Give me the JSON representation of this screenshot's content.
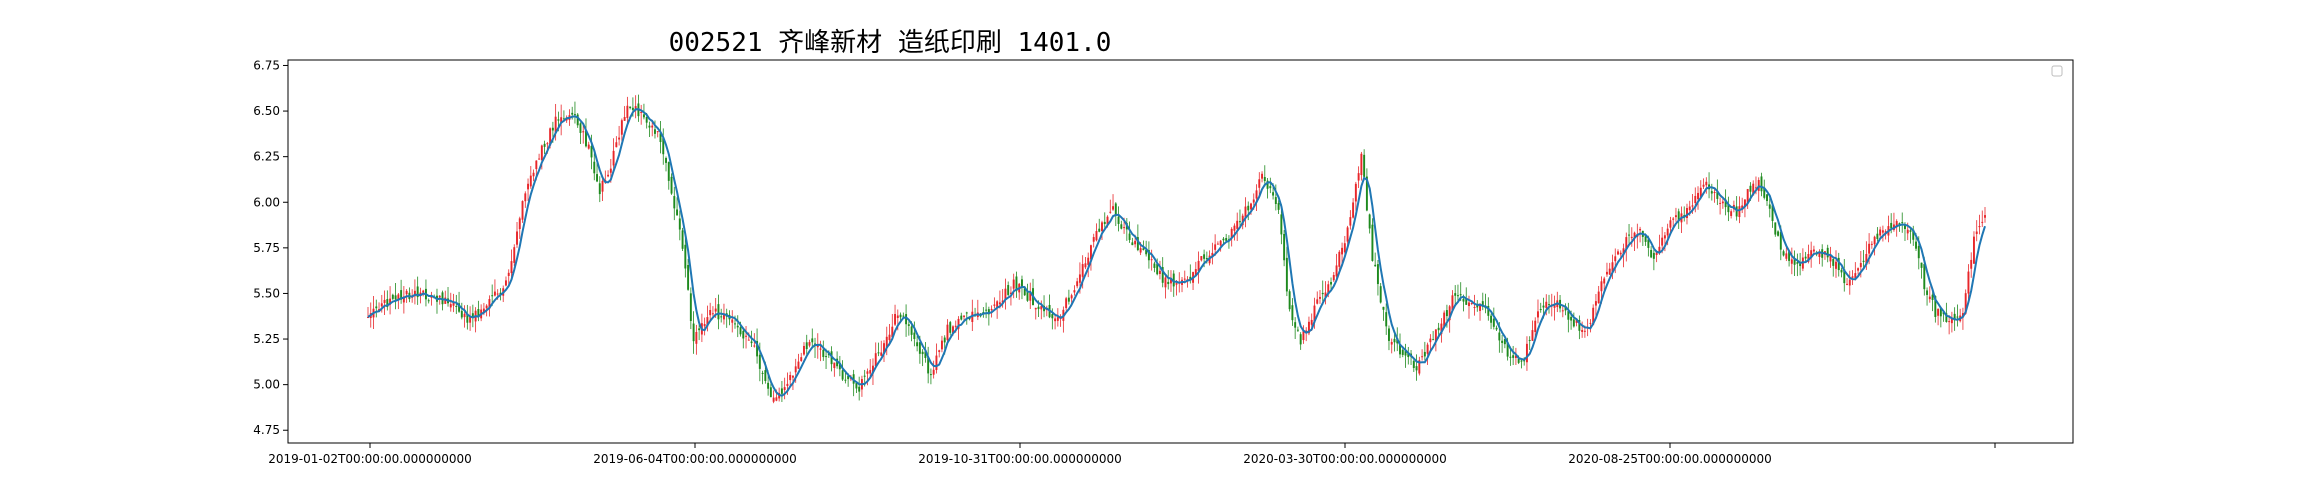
{
  "chart_data": {
    "type": "candlestick",
    "title": "002521 齐峰新材 造纸印刷 1401.0",
    "xlabel": "",
    "ylabel": "",
    "ylim": [
      4.68,
      6.78
    ],
    "yticks": [
      "4.75",
      "5.00",
      "5.25",
      "5.50",
      "5.75",
      "6.00",
      "6.25",
      "6.50",
      "6.75"
    ],
    "xticks": [
      "2019-01-02T00:00:00.000000000",
      "2019-06-04T00:00:00.000000000",
      "2019-10-31T00:00:00.000000000",
      "2020-03-30T00:00:00.000000000",
      "2020-08-25T00:00:00.000000000",
      ""
    ],
    "up_color": "#e8262a",
    "down_color": "#1e8a1e",
    "ma_color": "#1f77b4",
    "legend": "empty box, top-right",
    "grid": false,
    "price_path_approx": [
      [
        0,
        5.4
      ],
      [
        4,
        5.42
      ],
      [
        10,
        5.48
      ],
      [
        18,
        5.5
      ],
      [
        30,
        5.45
      ],
      [
        36,
        5.35
      ],
      [
        42,
        5.42
      ],
      [
        50,
        5.55
      ],
      [
        56,
        6.0
      ],
      [
        62,
        6.25
      ],
      [
        68,
        6.45
      ],
      [
        74,
        6.5
      ],
      [
        80,
        6.3
      ],
      [
        84,
        6.05
      ],
      [
        88,
        6.2
      ],
      [
        94,
        6.55
      ],
      [
        100,
        6.45
      ],
      [
        106,
        6.35
      ],
      [
        110,
        6.05
      ],
      [
        114,
        5.75
      ],
      [
        118,
        5.25
      ],
      [
        124,
        5.4
      ],
      [
        132,
        5.35
      ],
      [
        140,
        5.2
      ],
      [
        146,
        4.92
      ],
      [
        152,
        5.0
      ],
      [
        160,
        5.25
      ],
      [
        166,
        5.15
      ],
      [
        172,
        5.05
      ],
      [
        178,
        4.98
      ],
      [
        186,
        5.2
      ],
      [
        192,
        5.4
      ],
      [
        198,
        5.25
      ],
      [
        204,
        5.05
      ],
      [
        210,
        5.3
      ],
      [
        218,
        5.38
      ],
      [
        226,
        5.42
      ],
      [
        234,
        5.55
      ],
      [
        242,
        5.45
      ],
      [
        250,
        5.35
      ],
      [
        258,
        5.6
      ],
      [
        264,
        5.85
      ],
      [
        270,
        5.95
      ],
      [
        276,
        5.8
      ],
      [
        282,
        5.7
      ],
      [
        290,
        5.55
      ],
      [
        298,
        5.6
      ],
      [
        306,
        5.75
      ],
      [
        314,
        5.85
      ],
      [
        320,
        6.0
      ],
      [
        324,
        6.15
      ],
      [
        330,
        5.95
      ],
      [
        334,
        5.4
      ],
      [
        338,
        5.25
      ],
      [
        344,
        5.45
      ],
      [
        350,
        5.6
      ],
      [
        356,
        5.9
      ],
      [
        360,
        6.25
      ],
      [
        364,
        5.7
      ],
      [
        370,
        5.25
      ],
      [
        376,
        5.15
      ],
      [
        380,
        5.1
      ],
      [
        388,
        5.3
      ],
      [
        394,
        5.5
      ],
      [
        400,
        5.45
      ],
      [
        406,
        5.4
      ],
      [
        412,
        5.2
      ],
      [
        418,
        5.1
      ],
      [
        424,
        5.4
      ],
      [
        430,
        5.45
      ],
      [
        436,
        5.35
      ],
      [
        442,
        5.3
      ],
      [
        448,
        5.6
      ],
      [
        454,
        5.75
      ],
      [
        460,
        5.85
      ],
      [
        466,
        5.7
      ],
      [
        472,
        5.9
      ],
      [
        478,
        5.95
      ],
      [
        484,
        6.1
      ],
      [
        490,
        6.0
      ],
      [
        496,
        5.95
      ],
      [
        500,
        6.05
      ],
      [
        504,
        6.1
      ],
      [
        508,
        5.95
      ],
      [
        512,
        5.75
      ],
      [
        518,
        5.65
      ],
      [
        524,
        5.75
      ],
      [
        530,
        5.7
      ],
      [
        536,
        5.55
      ],
      [
        542,
        5.7
      ],
      [
        548,
        5.85
      ],
      [
        554,
        5.9
      ],
      [
        560,
        5.8
      ],
      [
        564,
        5.55
      ],
      [
        568,
        5.4
      ],
      [
        572,
        5.35
      ],
      [
        578,
        5.4
      ],
      [
        582,
        5.8
      ],
      [
        586,
        5.9
      ]
    ]
  }
}
